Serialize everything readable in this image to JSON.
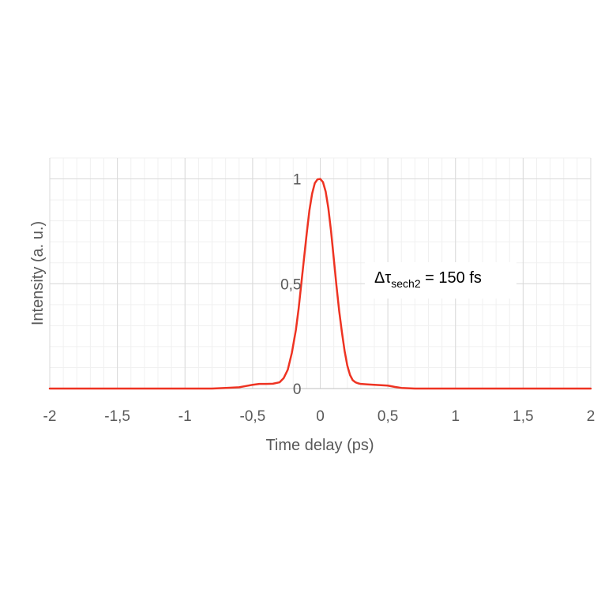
{
  "chart_data": {
    "type": "line",
    "xlabel": "Time delay (ps)",
    "ylabel": "Intensity (a. u.)",
    "xlim": [
      -2,
      2
    ],
    "ylim": [
      0,
      1.1
    ],
    "x_ticks": [
      -2,
      -1.5,
      -1,
      -0.5,
      0,
      0.5,
      1,
      1.5,
      2
    ],
    "x_tick_labels": [
      "-2",
      "-1,5",
      "-1",
      "-0,5",
      "0",
      "0,5",
      "1",
      "1,5",
      "2"
    ],
    "y_ticks": [
      0,
      0.5,
      1
    ],
    "y_tick_labels": [
      "0",
      "0,5",
      "1"
    ],
    "grid": true,
    "annotation": {
      "prefix": "Δτ",
      "subscript": "sech2",
      "suffix": " = 150 fs"
    },
    "series": [
      {
        "color": "#ee3322",
        "x": [
          -2,
          -1.5,
          -1,
          -0.8,
          -0.7,
          -0.6,
          -0.55,
          -0.5,
          -0.45,
          -0.4,
          -0.35,
          -0.3,
          -0.27,
          -0.24,
          -0.21,
          -0.18,
          -0.16,
          -0.14,
          -0.12,
          -0.1,
          -0.08,
          -0.06,
          -0.04,
          -0.02,
          0,
          0.02,
          0.04,
          0.06,
          0.08,
          0.1,
          0.12,
          0.14,
          0.16,
          0.18,
          0.2,
          0.22,
          0.24,
          0.26,
          0.28,
          0.3,
          0.35,
          0.4,
          0.45,
          0.5,
          0.55,
          0.6,
          0.7,
          0.8,
          1,
          1.5,
          2
        ],
        "y": [
          0.0,
          0.0,
          0.0,
          0.0,
          0.003,
          0.006,
          0.012,
          0.018,
          0.022,
          0.022,
          0.023,
          0.03,
          0.05,
          0.09,
          0.17,
          0.28,
          0.38,
          0.5,
          0.62,
          0.74,
          0.85,
          0.93,
          0.98,
          0.998,
          1.0,
          0.985,
          0.94,
          0.86,
          0.75,
          0.62,
          0.49,
          0.37,
          0.27,
          0.18,
          0.11,
          0.065,
          0.04,
          0.03,
          0.025,
          0.022,
          0.02,
          0.018,
          0.016,
          0.014,
          0.008,
          0.003,
          0.0,
          0.0,
          0.0,
          0.0,
          0.0
        ]
      }
    ]
  }
}
